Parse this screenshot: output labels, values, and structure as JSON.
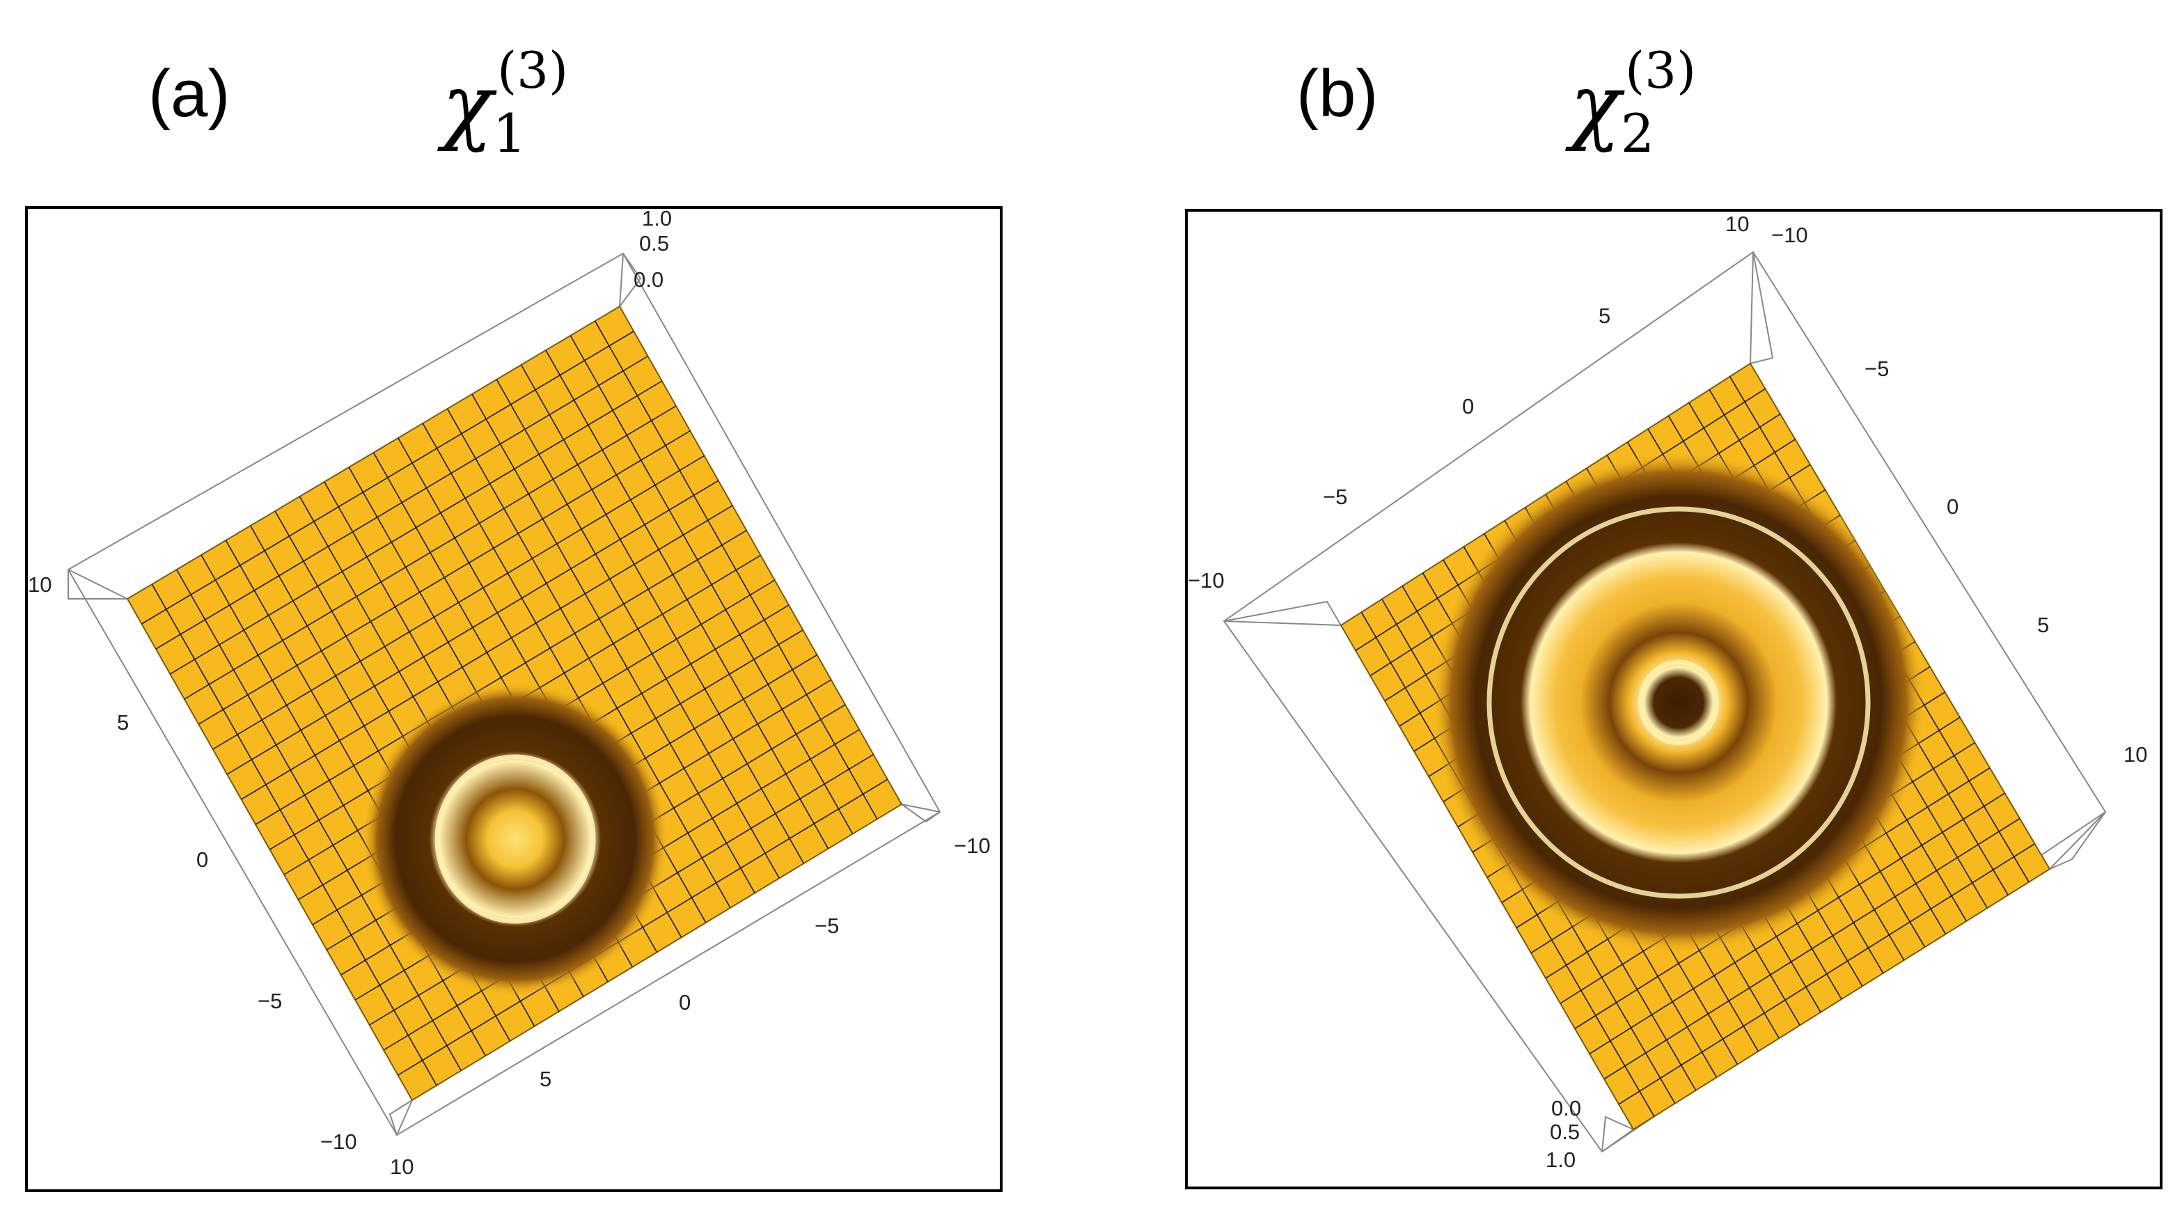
{
  "panels": [
    {
      "letter": "(a)",
      "title": {
        "base": "χ",
        "sub": "1",
        "sup": "(3)"
      },
      "z_ticks": [
        "1.0",
        "0.5",
        "0.0"
      ],
      "left_ticks": [
        "10",
        "5",
        "0",
        "−5",
        "−10"
      ],
      "bottom_ticks": [
        "10",
        "5",
        "0",
        "−5",
        "−10"
      ]
    },
    {
      "letter": "(b)",
      "title": {
        "base": "χ",
        "sub": "2",
        "sup": "(3)"
      },
      "z_ticks": [
        "0.0",
        "0.5",
        "1.0"
      ],
      "top_ticks": [
        "10",
        "5",
        "0",
        "−5",
        "−10"
      ],
      "right_ticks": [
        "−10",
        "−5",
        "0",
        "5",
        "10"
      ]
    }
  ],
  "chart_data": [
    {
      "type": "surface",
      "title": "χ1(3)",
      "x_range": [
        -10,
        10
      ],
      "y_range": [
        -10,
        10
      ],
      "z_range": [
        0,
        1
      ],
      "x_ticks": [
        10,
        5,
        0,
        -5,
        -10
      ],
      "y_ticks": [
        10,
        5,
        0,
        -5,
        -10
      ],
      "z_ticks": [
        1.0,
        0.5,
        0.0
      ],
      "features": "single dark ring around a bright center on a flat yellow plane",
      "colors": {
        "plane": "#f7b91e",
        "dark": "#4a2604",
        "highlight": "#fff1b0",
        "mesh": "#1c1a12"
      }
    },
    {
      "type": "surface",
      "title": "χ2(3)",
      "x_range": [
        -10,
        10
      ],
      "y_range": [
        -10,
        10
      ],
      "z_range": [
        0,
        1
      ],
      "x_ticks": [
        10,
        5,
        0,
        -5,
        -10
      ],
      "y_ticks": [
        -10,
        -5,
        0,
        5,
        10
      ],
      "z_ticks": [
        0.0,
        0.5,
        1.0
      ],
      "features": "two concentric dark rings with dark core on a flat yellow plane",
      "colors": {
        "plane": "#f7b91e",
        "dark": "#4a2604",
        "highlight": "#fff1b0",
        "mesh": "#1c1a12"
      }
    }
  ]
}
